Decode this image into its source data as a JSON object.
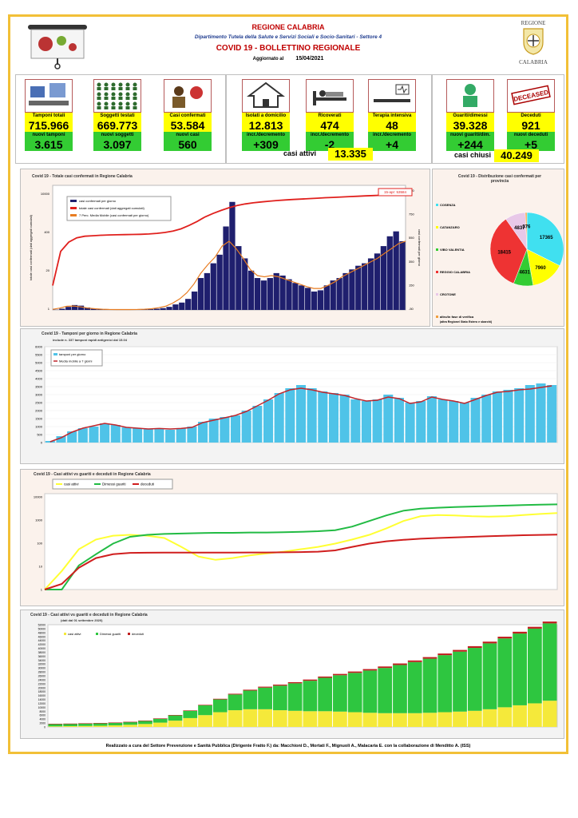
{
  "header": {
    "region": "REGIONE CALABRIA",
    "department": "Dipartimento Tutela della Salute e Servizi Sociali e Socio-Sanitari - Settore 4",
    "title": "COVID 19 - BOLLETTINO REGIONALE",
    "updated_label": "Aggiornato al",
    "updated_date": "15/04/2021",
    "logo_text_top": "REGIONE",
    "logo_text_bottom": "CALABRIA"
  },
  "stats": {
    "tamponi": {
      "label": "Tamponi totali",
      "value": "715.966",
      "label2": "nuovi tamponi",
      "value2": "3.615"
    },
    "soggetti": {
      "label": "Soggetti testati",
      "value": "669.773",
      "label2": "nuovi soggetti testati",
      "value2": "3.097"
    },
    "casi": {
      "label": "Casi confermati",
      "value": "53.584",
      "label2": "nuovi casi",
      "value2": "560"
    },
    "isolati": {
      "label": "Isolati a domicilio",
      "value": "12.813",
      "label2": "incr./decremento",
      "value2": "+309"
    },
    "ricoverati": {
      "label": "Ricoverati",
      "value": "474",
      "label2": "incr./decremento",
      "value2": "-2"
    },
    "terapia": {
      "label": "Terapia intensiva",
      "value": "48",
      "label2": "incr./decremento",
      "value2": "+4"
    },
    "guariti": {
      "label": "Guariti/dimessi",
      "value": "39.328",
      "label2": "nuovi guariti/dim.",
      "value2": "+244"
    },
    "deceduti": {
      "label": "Deceduti",
      "value": "921",
      "label2": "nuovi deceduti",
      "value2": "+5"
    },
    "casi_attivi_label": "casi attivi",
    "casi_attivi": "13.335",
    "casi_chiusi_label": "casi chiusi",
    "casi_chiusi": "40.249",
    "deceased_stamp": "DECEASED"
  },
  "colors": {
    "yellow": "#ffff00",
    "green": "#33cc33",
    "red": "#e0201d",
    "navy": "#1f1f6e",
    "orange": "#e87d22",
    "cyan": "#4fc3e8",
    "frame": "#f2c037"
  },
  "chart_data": [
    {
      "type": "bar",
      "title": "Covid 19 - Totale casi confermati in Regione Calabria",
      "annotation": "15-apr: 53584",
      "ylabel_left": "totale casi confermati (dati aggregati cumulati)",
      "ylabel_right": "casi confermati per giorno",
      "y_ticks_left": [
        "10000",
        "400",
        "20",
        "1"
      ],
      "y_ticks_right": [
        "950",
        "750",
        "550",
        "350",
        "150",
        "-50"
      ],
      "log_scale_left": true,
      "series": [
        {
          "name": "casi confermati per giorno",
          "kind": "bar",
          "values": [
            2,
            10,
            25,
            40,
            35,
            20,
            12,
            8,
            5,
            3,
            2,
            2,
            3,
            2,
            4,
            6,
            10,
            15,
            25,
            45,
            60,
            90,
            150,
            260,
            300,
            380,
            450,
            680,
            880,
            520,
            420,
            320,
            260,
            240,
            260,
            300,
            280,
            250,
            220,
            200,
            180,
            150,
            160,
            200,
            240,
            260,
            300,
            330,
            360,
            380,
            420,
            460,
            520,
            600,
            640,
            560
          ]
        },
        {
          "name": "totale casi confermati (dati aggregati cumulati)",
          "kind": "line",
          "values": [
            10,
            250,
            600,
            900,
            1050,
            1100,
            1150,
            1180,
            1200,
            1220,
            1240,
            1260,
            1300,
            1380,
            1500,
            1700,
            2100,
            2900,
            4200,
            6500,
            9000,
            12000,
            15500,
            19000,
            22000,
            24500,
            26500,
            28500,
            30500,
            32000,
            33500,
            35000,
            36500,
            38000,
            39500,
            41000,
            42500,
            44000,
            45500,
            47000,
            48500,
            50000,
            51500,
            52500,
            53584
          ]
        },
        {
          "name": "7 Perc. Media Mobile (casi confermati per giorno)",
          "kind": "line",
          "values": [
            5,
            15,
            30,
            32,
            25,
            15,
            10,
            6,
            4,
            3,
            3,
            3,
            4,
            6,
            10,
            18,
            30,
            55,
            90,
            140,
            210,
            300,
            370,
            430,
            520,
            560,
            500,
            420,
            330,
            280,
            270,
            280,
            270,
            250,
            230,
            210,
            190,
            175,
            175,
            200,
            230,
            270,
            300,
            330,
            360,
            390,
            420,
            460,
            500,
            540,
            560
          ]
        }
      ]
    },
    {
      "type": "pie",
      "title": "Covid 19 - Distribuzione casi confermati per provincia",
      "categories": [
        "COSENZA",
        "CATANZARO",
        "VIBO VALENTIA",
        "REGGIO CALABRIA",
        "CROTONE",
        "altro/in fase di verifica"
      ],
      "category_note": "(altra Regione/ Stato Estero e sbarchi)",
      "values": [
        17365,
        7960,
        4631,
        18415,
        4837,
        376
      ],
      "colors": [
        "#40e0f0",
        "#ffff00",
        "#33cc33",
        "#ee3333",
        "#e8c8e8",
        "#f0a040"
      ]
    },
    {
      "type": "bar",
      "title": "Covid 19 - Tamponi per giorno in Regione Calabria",
      "subtitle": "include n. 337 tamponi rapidi antigenici dal 15.04",
      "y_ticks": [
        "6000",
        "5500",
        "5000",
        "4500",
        "4000",
        "3500",
        "3000",
        "2500",
        "2000",
        "1500",
        "1000",
        "500",
        "0"
      ],
      "ylim": [
        0,
        6000
      ],
      "series": [
        {
          "name": "tamponi per giorno",
          "kind": "bar",
          "values": [
            100,
            400,
            700,
            900,
            1000,
            1200,
            1100,
            950,
            900,
            850,
            900,
            800,
            900,
            1000,
            1300,
            1500,
            1600,
            1700,
            2000,
            2300,
            2700,
            3100,
            3400,
            3600,
            3400,
            3200,
            3100,
            3000,
            2700,
            2600,
            2700,
            3000,
            2800,
            2500,
            2600,
            2900,
            2700,
            2600,
            2500,
            2800,
            3000,
            3200,
            3300,
            3400,
            3600,
            3700,
            3600
          ]
        },
        {
          "name": "Media mobile a 7 giorni",
          "kind": "line",
          "values": [
            50,
            300,
            650,
            900,
            1050,
            1200,
            1100,
            950,
            900,
            850,
            880,
            850,
            880,
            950,
            1250,
            1400,
            1550,
            1700,
            1950,
            2300,
            2650,
            3050,
            3300,
            3400,
            3300,
            3150,
            3050,
            2950,
            2750,
            2600,
            2650,
            2850,
            2750,
            2450,
            2550,
            2850,
            2700,
            2600,
            2450,
            2700,
            2950,
            3150,
            3200,
            3300,
            3350,
            3450,
            3550
          ]
        }
      ]
    },
    {
      "type": "line",
      "title": "Covid 19 - Casi attivi vs guariti e deceduti in Regione Calabria",
      "y_ticks": [
        "10000",
        "1000",
        "100",
        "10",
        "1"
      ],
      "log_scale": true,
      "series": [
        {
          "name": "casi attivi",
          "values": [
            1,
            10,
            150,
            500,
            800,
            900,
            800,
            600,
            200,
            60,
            40,
            50,
            70,
            90,
            110,
            150,
            200,
            300,
            500,
            900,
            2000,
            5000,
            9000,
            10500,
            10000,
            9000,
            8500,
            9000,
            10500,
            12000,
            13335
          ]
        },
        {
          "name": "Dimessi guariti",
          "values": [
            1,
            1,
            20,
            80,
            300,
            700,
            900,
            1000,
            1050,
            1100,
            1150,
            1150,
            1200,
            1200,
            1250,
            1300,
            1400,
            1600,
            2500,
            5000,
            10000,
            18000,
            23000,
            26000,
            28000,
            30000,
            32000,
            34000,
            36000,
            38000,
            39328
          ]
        },
        {
          "name": "deceduti",
          "values": [
            1,
            2,
            15,
            50,
            80,
            95,
            97,
            98,
            98,
            98,
            99,
            99,
            100,
            100,
            102,
            105,
            110,
            130,
            200,
            300,
            400,
            480,
            550,
            600,
            650,
            700,
            750,
            800,
            850,
            890,
            921
          ]
        }
      ]
    },
    {
      "type": "bar",
      "title": "Covid 19 - Casi attivi vs guariti e deceduti in Regione Calabria",
      "subtitle": "(dati dal 01 settembre 2020)",
      "y_ticks": [
        "52000",
        "50000",
        "48000",
        "46000",
        "44000",
        "42000",
        "40000",
        "38000",
        "36000",
        "34000",
        "32000",
        "30000",
        "28000",
        "26000",
        "24000",
        "22000",
        "20000",
        "18000",
        "16000",
        "14000",
        "12000",
        "10000",
        "8000",
        "6000",
        "4000",
        "2000",
        "0"
      ],
      "ylim": [
        0,
        52000
      ],
      "stacked": true,
      "series": [
        {
          "name": "casi attivi",
          "values": [
            300,
            400,
            500,
            600,
            800,
            1100,
            1500,
            2200,
            3200,
            4500,
            6000,
            7500,
            8500,
            9000,
            9000,
            8500,
            8200,
            8000,
            8000,
            7800,
            7500,
            7200,
            7000,
            7000,
            7000,
            7200,
            7500,
            7800,
            8200,
            9000,
            10000,
            11000,
            12000,
            13335
          ]
        },
        {
          "name": "Dimessi guariti",
          "values": [
            1200,
            1200,
            1250,
            1300,
            1350,
            1400,
            1600,
            2000,
            2700,
            3700,
            5000,
            6500,
            8000,
            9500,
            11000,
            12500,
            14000,
            15500,
            17000,
            18500,
            20000,
            21500,
            23000,
            24500,
            26000,
            27500,
            29000,
            30500,
            32000,
            33500,
            35000,
            36500,
            38000,
            39328
          ]
        },
        {
          "name": "deceduti",
          "values": [
            100,
            100,
            100,
            100,
            100,
            110,
            120,
            140,
            170,
            210,
            260,
            320,
            380,
            430,
            480,
            520,
            560,
            600,
            630,
            660,
            690,
            720,
            750,
            780,
            800,
            820,
            840,
            860,
            870,
            880,
            895,
            905,
            915,
            921
          ]
        }
      ]
    }
  ],
  "footer": "Realizzato a cura del Settore Prevenzione e Sanità Pubblica (Dirigente Fratto F.) da: Macchioni D., Mortati F., Mignuoli A., Malacaria E. con la collaborazione di Mendittо A. (ISS)"
}
